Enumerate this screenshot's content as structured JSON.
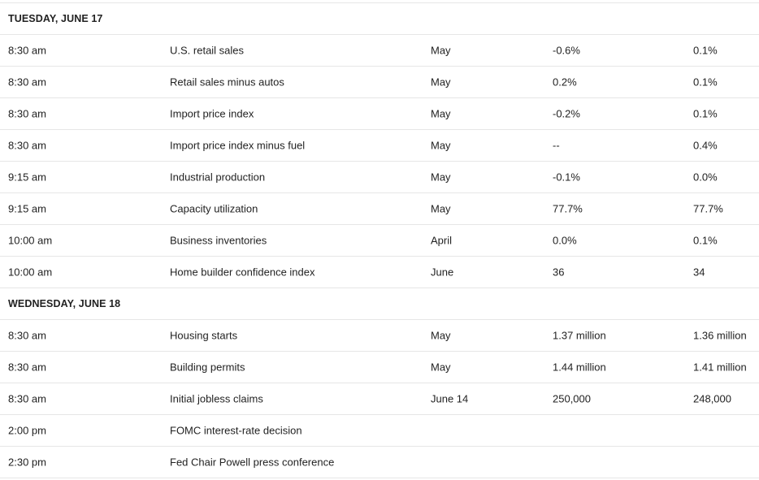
{
  "sections": [
    {
      "day": "TUESDAY, JUNE 17",
      "rows": [
        {
          "time": "8:30 am",
          "event": "U.S. retail sales",
          "period": "May",
          "forecast": "-0.6%",
          "previous": "0.1%"
        },
        {
          "time": "8:30 am",
          "event": "Retail sales minus autos",
          "period": "May",
          "forecast": "0.2%",
          "previous": "0.1%"
        },
        {
          "time": "8:30 am",
          "event": "Import price index",
          "period": "May",
          "forecast": "-0.2%",
          "previous": "0.1%"
        },
        {
          "time": "8:30 am",
          "event": "Import price index minus fuel",
          "period": "May",
          "forecast": "--",
          "previous": "0.4%"
        },
        {
          "time": "9:15 am",
          "event": "Industrial production",
          "period": "May",
          "forecast": "-0.1%",
          "previous": "0.0%"
        },
        {
          "time": "9:15 am",
          "event": "Capacity utilization",
          "period": "May",
          "forecast": "77.7%",
          "previous": "77.7%"
        },
        {
          "time": "10:00 am",
          "event": "Business inventories",
          "period": "April",
          "forecast": "0.0%",
          "previous": "0.1%"
        },
        {
          "time": "10:00 am",
          "event": "Home builder confidence index",
          "period": "June",
          "forecast": "36",
          "previous": "34"
        }
      ]
    },
    {
      "day": "WEDNESDAY, JUNE 18",
      "rows": [
        {
          "time": "8:30 am",
          "event": "Housing starts",
          "period": "May",
          "forecast": "1.37 million",
          "previous": "1.36 million"
        },
        {
          "time": "8:30 am",
          "event": "Building permits",
          "period": "May",
          "forecast": "1.44 million",
          "previous": "1.41 million"
        },
        {
          "time": "8:30 am",
          "event": "Initial jobless claims",
          "period": "June 14",
          "forecast": "250,000",
          "previous": "248,000"
        },
        {
          "time": "2:00 pm",
          "event": "FOMC interest-rate decision",
          "period": "",
          "forecast": "",
          "previous": ""
        },
        {
          "time": "2:30 pm",
          "event": "Fed Chair Powell press conference",
          "period": "",
          "forecast": "",
          "previous": ""
        }
      ]
    }
  ]
}
